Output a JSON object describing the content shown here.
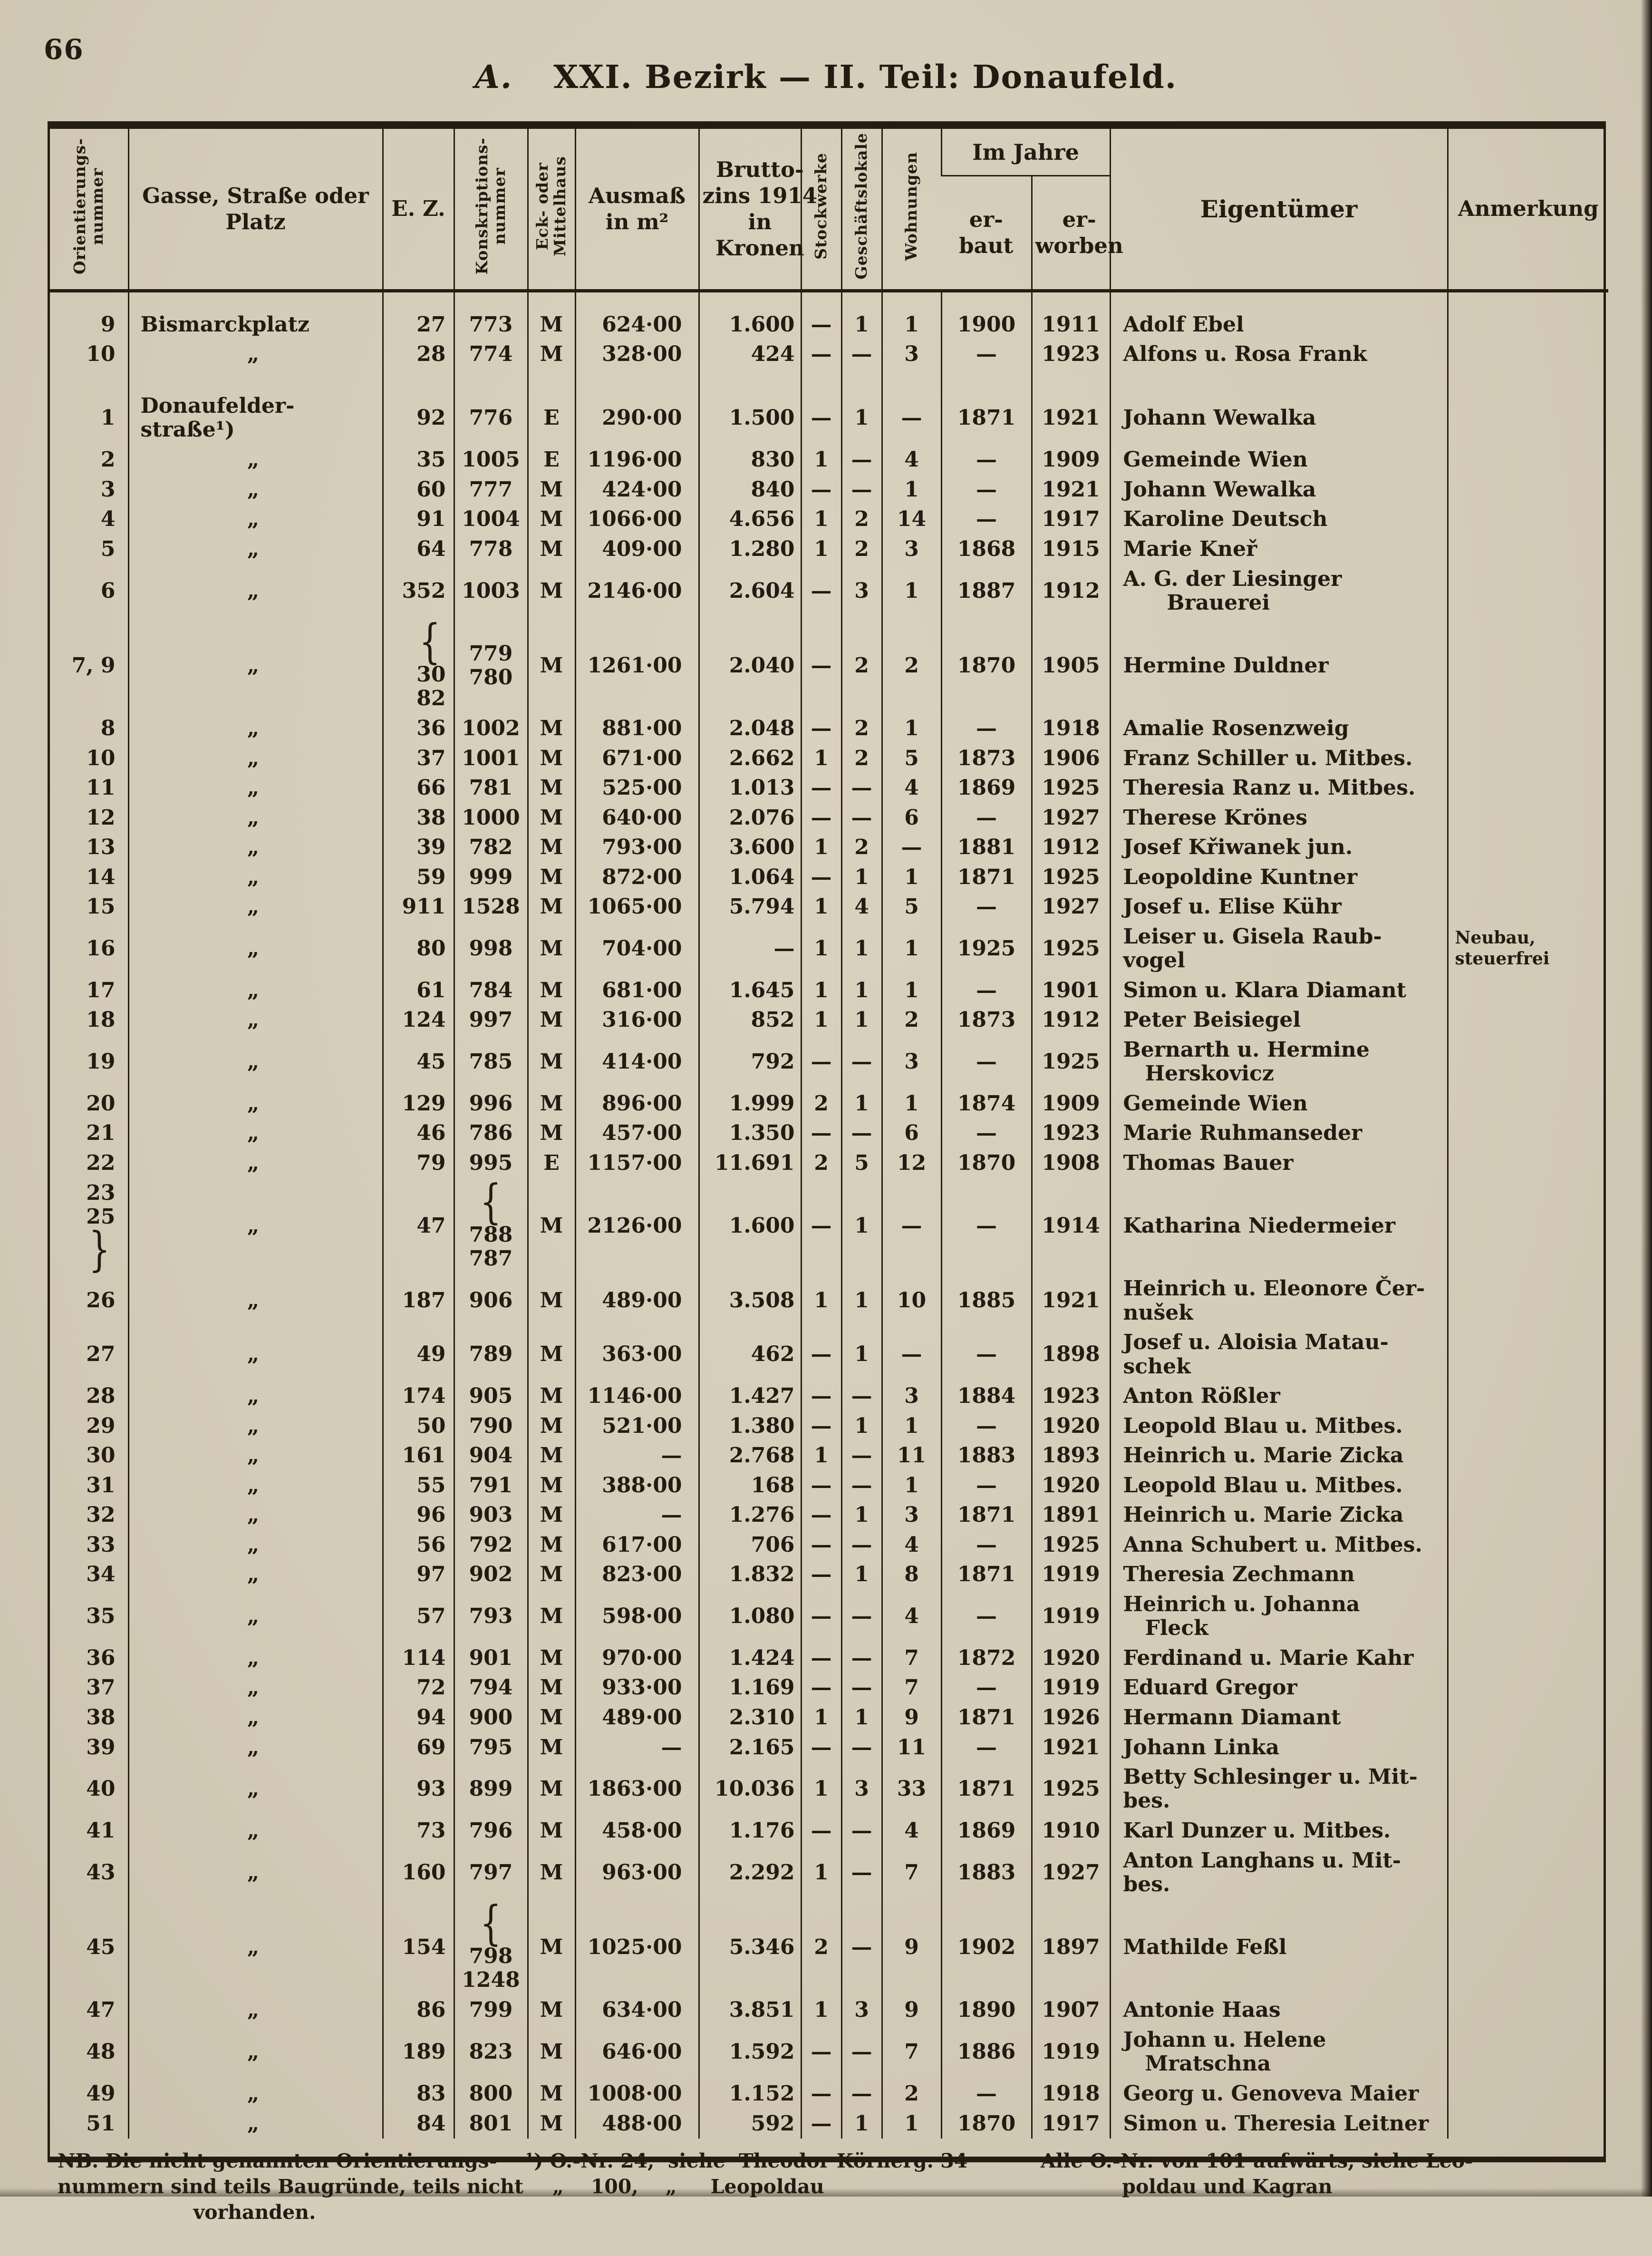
{
  "page": {
    "number": "66",
    "section": "A.",
    "title": "XXI. Bezirk — II. Teil: Donaufeld."
  },
  "colors": {
    "paper": "#d5ccb9",
    "ink": "#221b11"
  },
  "table": {
    "headers": {
      "orientierungsnummer": "Orientierungs-\nnummer",
      "gasse": "Gasse, Straße oder\nPlatz",
      "ez": "E. Z.",
      "konskriptionsnummer": "Konskriptions-\nnummer",
      "eck_mittelhaus": "Eck- oder\nMittelhaus",
      "ausmass": "Ausmaß\nin m²",
      "bruttozins": "Brutto-\nzins 1914\nin\nKronen",
      "stockwerke": "Stockwerke",
      "geschaeftslokale": "Geschäftslokale",
      "wohnungen": "Wohnungen",
      "im_jahre": "Im Jahre",
      "erbaut": "er-\nbaut",
      "erworben": "er-\nworben",
      "eigentuemer": "Eigentümer",
      "anmerkung": "Anmerkung"
    },
    "rows": [
      {
        "nr": "9",
        "street": "Bismarckplatz",
        "ez": "27",
        "konskr": "773",
        "em": "M",
        "ausmass": "624·00",
        "zins": "1.600",
        "stock": "—",
        "gesch": "1",
        "wohn": "1",
        "erbaut": "1900",
        "erworben": "1911",
        "eigentuemer": "Adolf Ebel",
        "anmerkung": ""
      },
      {
        "nr": "10",
        "street": "„",
        "ez": "28",
        "konskr": "774",
        "em": "M",
        "ausmass": "328·00",
        "zins": "424",
        "stock": "—",
        "gesch": "—",
        "wohn": "3",
        "erbaut": "—",
        "erworben": "1923",
        "eigentuemer": "Alfons u. Rosa Frank",
        "anmerkung": ""
      },
      {
        "nr": "1",
        "gap": true,
        "street": "Donaufelder-\nstraße¹)",
        "ez": "92",
        "konskr": "776",
        "em": "E",
        "ausmass": "290·00",
        "zins": "1.500",
        "stock": "—",
        "gesch": "1",
        "wohn": "—",
        "erbaut": "1871",
        "erworben": "1921",
        "eigentuemer": "Johann Wewalka",
        "anmerkung": ""
      },
      {
        "nr": "2",
        "street": "„",
        "ez": "35",
        "konskr": "1005",
        "em": "E",
        "ausmass": "1196·00",
        "zins": "830",
        "stock": "1",
        "gesch": "—",
        "wohn": "4",
        "erbaut": "—",
        "erworben": "1909",
        "eigentuemer": "Gemeinde Wien",
        "anmerkung": ""
      },
      {
        "nr": "3",
        "street": "„",
        "ez": "60",
        "konskr": "777",
        "em": "M",
        "ausmass": "424·00",
        "zins": "840",
        "stock": "—",
        "gesch": "—",
        "wohn": "1",
        "erbaut": "—",
        "erworben": "1921",
        "eigentuemer": "Johann Wewalka",
        "anmerkung": ""
      },
      {
        "nr": "4",
        "street": "„",
        "ez": "91",
        "konskr": "1004",
        "em": "M",
        "ausmass": "1066·00",
        "zins": "4.656",
        "stock": "1",
        "gesch": "2",
        "wohn": "14",
        "erbaut": "—",
        "erworben": "1917",
        "eigentuemer": "Karoline Deutsch",
        "anmerkung": ""
      },
      {
        "nr": "5",
        "street": "„",
        "ez": "64",
        "konskr": "778",
        "em": "M",
        "ausmass": "409·00",
        "zins": "1.280",
        "stock": "1",
        "gesch": "2",
        "wohn": "3",
        "erbaut": "1868",
        "erworben": "1915",
        "eigentuemer": "Marie Kneř",
        "anmerkung": ""
      },
      {
        "nr": "6",
        "street": "„",
        "ez": "352",
        "konskr": "1003",
        "em": "M",
        "ausmass": "2146·00",
        "zins": "2.604",
        "stock": "—",
        "gesch": "3",
        "wohn": "1",
        "erbaut": "1887",
        "erworben": "1912",
        "eigentuemer": "A. G. der Liesinger\n      Brauerei",
        "anmerkung": ""
      },
      {
        "nr": "7, 9",
        "street": "„",
        "ez": {
          "brace": "left",
          "lines": [
            "30",
            "82"
          ]
        },
        "konskr": {
          "lines": [
            "779",
            "780"
          ]
        },
        "em": "M",
        "ausmass": "1261·00",
        "zins": "2.040",
        "stock": "—",
        "gesch": "2",
        "wohn": "2",
        "erbaut": "1870",
        "erworben": "1905",
        "eigentuemer": "Hermine Duldner",
        "anmerkung": ""
      },
      {
        "nr": "8",
        "street": "„",
        "ez": "36",
        "konskr": "1002",
        "em": "M",
        "ausmass": "881·00",
        "zins": "2.048",
        "stock": "—",
        "gesch": "2",
        "wohn": "1",
        "erbaut": "—",
        "erworben": "1918",
        "eigentuemer": "Amalie Rosenzweig",
        "anmerkung": ""
      },
      {
        "nr": "10",
        "street": "„",
        "ez": "37",
        "konskr": "1001",
        "em": "M",
        "ausmass": "671·00",
        "zins": "2.662",
        "stock": "1",
        "gesch": "2",
        "wohn": "5",
        "erbaut": "1873",
        "erworben": "1906",
        "eigentuemer": "Franz Schiller u. Mitbes.",
        "anmerkung": ""
      },
      {
        "nr": "11",
        "street": "„",
        "ez": "66",
        "konskr": "781",
        "em": "M",
        "ausmass": "525·00",
        "zins": "1.013",
        "stock": "—",
        "gesch": "—",
        "wohn": "4",
        "erbaut": "1869",
        "erworben": "1925",
        "eigentuemer": "Theresia Ranz u. Mitbes.",
        "anmerkung": ""
      },
      {
        "nr": "12",
        "street": "„",
        "ez": "38",
        "konskr": "1000",
        "em": "M",
        "ausmass": "640·00",
        "zins": "2.076",
        "stock": "—",
        "gesch": "—",
        "wohn": "6",
        "erbaut": "—",
        "erworben": "1927",
        "eigentuemer": "Therese Krönes",
        "anmerkung": ""
      },
      {
        "nr": "13",
        "street": "„",
        "ez": "39",
        "konskr": "782",
        "em": "M",
        "ausmass": "793·00",
        "zins": "3.600",
        "stock": "1",
        "gesch": "2",
        "wohn": "—",
        "erbaut": "1881",
        "erworben": "1912",
        "eigentuemer": "Josef Křiwanek jun.",
        "anmerkung": ""
      },
      {
        "nr": "14",
        "street": "„",
        "ez": "59",
        "konskr": "999",
        "em": "M",
        "ausmass": "872·00",
        "zins": "1.064",
        "stock": "—",
        "gesch": "1",
        "wohn": "1",
        "erbaut": "1871",
        "erworben": "1925",
        "eigentuemer": "Leopoldine Kuntner",
        "anmerkung": ""
      },
      {
        "nr": "15",
        "street": "„",
        "ez": "911",
        "konskr": "1528",
        "em": "M",
        "ausmass": "1065·00",
        "zins": "5.794",
        "stock": "1",
        "gesch": "4",
        "wohn": "5",
        "erbaut": "—",
        "erworben": "1927",
        "eigentuemer": "Josef u. Elise Kühr",
        "anmerkung": ""
      },
      {
        "nr": "16",
        "street": "„",
        "ez": "80",
        "konskr": "998",
        "em": "M",
        "ausmass": "704·00",
        "zins": "—",
        "stock": "1",
        "gesch": "1",
        "wohn": "1",
        "erbaut": "1925",
        "erworben": "1925",
        "eigentuemer": "Leiser u. Gisela Raub-\nvogel",
        "anmerkung": "Neubau,\nsteuerfrei"
      },
      {
        "nr": "17",
        "street": "„",
        "ez": "61",
        "konskr": "784",
        "em": "M",
        "ausmass": "681·00",
        "zins": "1.645",
        "stock": "1",
        "gesch": "1",
        "wohn": "1",
        "erbaut": "—",
        "erworben": "1901",
        "eigentuemer": "Simon u. Klara Diamant",
        "anmerkung": ""
      },
      {
        "nr": "18",
        "street": "„",
        "ez": "124",
        "konskr": "997",
        "em": "M",
        "ausmass": "316·00",
        "zins": "852",
        "stock": "1",
        "gesch": "1",
        "wohn": "2",
        "erbaut": "1873",
        "erworben": "1912",
        "eigentuemer": "Peter Beisiegel",
        "anmerkung": ""
      },
      {
        "nr": "19",
        "street": "„",
        "ez": "45",
        "konskr": "785",
        "em": "M",
        "ausmass": "414·00",
        "zins": "792",
        "stock": "—",
        "gesch": "—",
        "wohn": "3",
        "erbaut": "—",
        "erworben": "1925",
        "eigentuemer": "Bernarth u. Hermine\n   Herskovicz",
        "anmerkung": ""
      },
      {
        "nr": "20",
        "street": "„",
        "ez": "129",
        "konskr": "996",
        "em": "M",
        "ausmass": "896·00",
        "zins": "1.999",
        "stock": "2",
        "gesch": "1",
        "wohn": "1",
        "erbaut": "1874",
        "erworben": "1909",
        "eigentuemer": "Gemeinde Wien",
        "anmerkung": ""
      },
      {
        "nr": "21",
        "street": "„",
        "ez": "46",
        "konskr": "786",
        "em": "M",
        "ausmass": "457·00",
        "zins": "1.350",
        "stock": "—",
        "gesch": "—",
        "wohn": "6",
        "erbaut": "—",
        "erworben": "1923",
        "eigentuemer": "Marie Ruhmanseder",
        "anmerkung": ""
      },
      {
        "nr": "22",
        "street": "„",
        "ez": "79",
        "konskr": "995",
        "em": "E",
        "ausmass": "1157·00",
        "zins": "11.691",
        "stock": "2",
        "gesch": "5",
        "wohn": "12",
        "erbaut": "1870",
        "erworben": "1908",
        "eigentuemer": "Thomas Bauer",
        "anmerkung": ""
      },
      {
        "nr": {
          "lines": [
            "23",
            "25"
          ],
          "brace": "right"
        },
        "street": "„",
        "ez": "47",
        "konskr": {
          "brace": "left",
          "lines": [
            "788",
            "787"
          ]
        },
        "em": "M",
        "ausmass": "2126·00",
        "zins": "1.600",
        "stock": "—",
        "gesch": "1",
        "wohn": "—",
        "erbaut": "—",
        "erworben": "1914",
        "eigentuemer": "Katharina Niedermeier",
        "anmerkung": ""
      },
      {
        "nr": "26",
        "street": "„",
        "ez": "187",
        "konskr": "906",
        "em": "M",
        "ausmass": "489·00",
        "zins": "3.508",
        "stock": "1",
        "gesch": "1",
        "wohn": "10",
        "erbaut": "1885",
        "erworben": "1921",
        "eigentuemer": "Heinrich u. Eleonore Čer-\nnušek",
        "anmerkung": ""
      },
      {
        "nr": "27",
        "street": "„",
        "ez": "49",
        "konskr": "789",
        "em": "M",
        "ausmass": "363·00",
        "zins": "462",
        "stock": "—",
        "gesch": "1",
        "wohn": "—",
        "erbaut": "—",
        "erworben": "1898",
        "eigentuemer": "Josef u. Aloisia Matau-\nschek",
        "anmerkung": ""
      },
      {
        "nr": "28",
        "street": "„",
        "ez": "174",
        "konskr": "905",
        "em": "M",
        "ausmass": "1146·00",
        "zins": "1.427",
        "stock": "—",
        "gesch": "—",
        "wohn": "3",
        "erbaut": "1884",
        "erworben": "1923",
        "eigentuemer": "Anton Rößler",
        "anmerkung": ""
      },
      {
        "nr": "29",
        "street": "„",
        "ez": "50",
        "konskr": "790",
        "em": "M",
        "ausmass": "521·00",
        "zins": "1.380",
        "stock": "—",
        "gesch": "1",
        "wohn": "1",
        "erbaut": "—",
        "erworben": "1920",
        "eigentuemer": "Leopold Blau u. Mitbes.",
        "anmerkung": ""
      },
      {
        "nr": "30",
        "street": "„",
        "ez": "161",
        "konskr": "904",
        "em": "M",
        "ausmass": "—",
        "zins": "2.768",
        "stock": "1",
        "gesch": "—",
        "wohn": "11",
        "erbaut": "1883",
        "erworben": "1893",
        "eigentuemer": "Heinrich u. Marie Zicka",
        "anmerkung": ""
      },
      {
        "nr": "31",
        "street": "„",
        "ez": "55",
        "konskr": "791",
        "em": "M",
        "ausmass": "388·00",
        "zins": "168",
        "stock": "—",
        "gesch": "—",
        "wohn": "1",
        "erbaut": "—",
        "erworben": "1920",
        "eigentuemer": "Leopold Blau u. Mitbes.",
        "anmerkung": ""
      },
      {
        "nr": "32",
        "street": "„",
        "ez": "96",
        "konskr": "903",
        "em": "M",
        "ausmass": "—",
        "zins": "1.276",
        "stock": "—",
        "gesch": "1",
        "wohn": "3",
        "erbaut": "1871",
        "erworben": "1891",
        "eigentuemer": "Heinrich u. Marie Zicka",
        "anmerkung": ""
      },
      {
        "nr": "33",
        "street": "„",
        "ez": "56",
        "konskr": "792",
        "em": "M",
        "ausmass": "617·00",
        "zins": "706",
        "stock": "—",
        "gesch": "—",
        "wohn": "4",
        "erbaut": "—",
        "erworben": "1925",
        "eigentuemer": "Anna Schubert u. Mitbes.",
        "anmerkung": ""
      },
      {
        "nr": "34",
        "street": "„",
        "ez": "97",
        "konskr": "902",
        "em": "M",
        "ausmass": "823·00",
        "zins": "1.832",
        "stock": "—",
        "gesch": "1",
        "wohn": "8",
        "erbaut": "1871",
        "erworben": "1919",
        "eigentuemer": "Theresia Zechmann",
        "anmerkung": ""
      },
      {
        "nr": "35",
        "street": "„",
        "ez": "57",
        "konskr": "793",
        "em": "M",
        "ausmass": "598·00",
        "zins": "1.080",
        "stock": "—",
        "gesch": "—",
        "wohn": "4",
        "erbaut": "—",
        "erworben": "1919",
        "eigentuemer": "Heinrich u. Johanna\n   Fleck",
        "anmerkung": ""
      },
      {
        "nr": "36",
        "street": "„",
        "ez": "114",
        "konskr": "901",
        "em": "M",
        "ausmass": "970·00",
        "zins": "1.424",
        "stock": "—",
        "gesch": "—",
        "wohn": "7",
        "erbaut": "1872",
        "erworben": "1920",
        "eigentuemer": "Ferdinand u. Marie Kahr",
        "anmerkung": ""
      },
      {
        "nr": "37",
        "street": "„",
        "ez": "72",
        "konskr": "794",
        "em": "M",
        "ausmass": "933·00",
        "zins": "1.169",
        "stock": "—",
        "gesch": "—",
        "wohn": "7",
        "erbaut": "—",
        "erworben": "1919",
        "eigentuemer": "Eduard Gregor",
        "anmerkung": ""
      },
      {
        "nr": "38",
        "street": "„",
        "ez": "94",
        "konskr": "900",
        "em": "M",
        "ausmass": "489·00",
        "zins": "2.310",
        "stock": "1",
        "gesch": "1",
        "wohn": "9",
        "erbaut": "1871",
        "erworben": "1926",
        "eigentuemer": "Hermann Diamant",
        "anmerkung": ""
      },
      {
        "nr": "39",
        "street": "„",
        "ez": "69",
        "konskr": "795",
        "em": "M",
        "ausmass": "—",
        "zins": "2.165",
        "stock": "—",
        "gesch": "—",
        "wohn": "11",
        "erbaut": "—",
        "erworben": "1921",
        "eigentuemer": "Johann Linka",
        "anmerkung": ""
      },
      {
        "nr": "40",
        "street": "„",
        "ez": "93",
        "konskr": "899",
        "em": "M",
        "ausmass": "1863·00",
        "zins": "10.036",
        "stock": "1",
        "gesch": "3",
        "wohn": "33",
        "erbaut": "1871",
        "erworben": "1925",
        "eigentuemer": "Betty Schlesinger u. Mit-\nbes.",
        "anmerkung": ""
      },
      {
        "nr": "41",
        "street": "„",
        "ez": "73",
        "konskr": "796",
        "em": "M",
        "ausmass": "458·00",
        "zins": "1.176",
        "stock": "—",
        "gesch": "—",
        "wohn": "4",
        "erbaut": "1869",
        "erworben": "1910",
        "eigentuemer": "Karl Dunzer u. Mitbes.",
        "anmerkung": ""
      },
      {
        "nr": "43",
        "street": "„",
        "ez": "160",
        "konskr": "797",
        "em": "M",
        "ausmass": "963·00",
        "zins": "2.292",
        "stock": "1",
        "gesch": "—",
        "wohn": "7",
        "erbaut": "1883",
        "erworben": "1927",
        "eigentuemer": "Anton Langhans u. Mit-\nbes.",
        "anmerkung": ""
      },
      {
        "nr": "45",
        "street": "„",
        "ez": "154",
        "konskr": {
          "brace": "left",
          "lines": [
            "798",
            "1248"
          ]
        },
        "em": "M",
        "ausmass": "1025·00",
        "zins": "5.346",
        "stock": "2",
        "gesch": "—",
        "wohn": "9",
        "erbaut": "1902",
        "erworben": "1897",
        "eigentuemer": "Mathilde Feßl",
        "anmerkung": ""
      },
      {
        "nr": "47",
        "street": "„",
        "ez": "86",
        "konskr": "799",
        "em": "M",
        "ausmass": "634·00",
        "zins": "3.851",
        "stock": "1",
        "gesch": "3",
        "wohn": "9",
        "erbaut": "1890",
        "erworben": "1907",
        "eigentuemer": "Antonie Haas",
        "anmerkung": ""
      },
      {
        "nr": "48",
        "street": "„",
        "ez": "189",
        "konskr": "823",
        "em": "M",
        "ausmass": "646·00",
        "zins": "1.592",
        "stock": "—",
        "gesch": "—",
        "wohn": "7",
        "erbaut": "1886",
        "erworben": "1919",
        "eigentuemer": "Johann u. Helene\n   Mratschna",
        "anmerkung": ""
      },
      {
        "nr": "49",
        "street": "„",
        "ez": "83",
        "konskr": "800",
        "em": "M",
        "ausmass": "1008·00",
        "zins": "1.152",
        "stock": "—",
        "gesch": "—",
        "wohn": "2",
        "erbaut": "—",
        "erworben": "1918",
        "eigentuemer": "Georg u. Genoveva Maier",
        "anmerkung": ""
      },
      {
        "nr": "51",
        "street": "„",
        "ez": "84",
        "konskr": "801",
        "em": "M",
        "ausmass": "488·00",
        "zins": "592",
        "stock": "—",
        "gesch": "1",
        "wohn": "1",
        "erbaut": "1870",
        "erworben": "1917",
        "eigentuemer": "Simon u. Theresia Leitner",
        "anmerkung": ""
      }
    ]
  },
  "footnotes": {
    "nb": "NB. Die nicht genannten Orientierungs-\nnummern sind teils Baugründe, teils nicht\n                    vorhanden.",
    "ref": "¹) O.-Nr. 24,  siehe  Theodor Körnerg. 34\n    „    100,    „     Leopoldau",
    "range": "Alle O.-Nr. von 101 aufwärts, siehe Leo-\n            poldau und Kagran"
  }
}
